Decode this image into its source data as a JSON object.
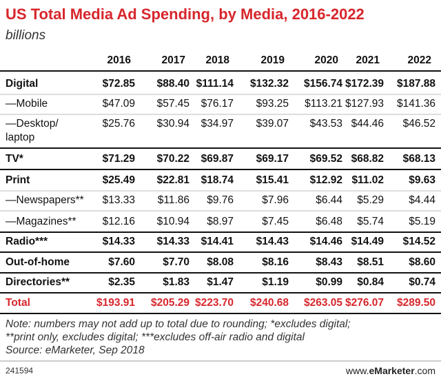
{
  "header": {
    "title": "US Total Media Ad Spending, by Media, 2016-2022",
    "subtitle": "billions"
  },
  "table": {
    "columns": [
      "2016",
      "2017",
      "2018",
      "2019",
      "2020",
      "2021",
      "2022"
    ],
    "rows": [
      {
        "label": "Digital",
        "cells": [
          "$72.85",
          "$88.40",
          "$111.14",
          "$132.32",
          "$156.74",
          "$172.39",
          "$187.88"
        ]
      },
      {
        "label": "—Mobile",
        "cells": [
          "$47.09",
          "$57.45",
          "$76.17",
          "$93.25",
          "$113.21",
          "$127.93",
          "$141.36"
        ]
      },
      {
        "label": [
          "—Desktop/",
          "laptop"
        ],
        "cells": [
          "$25.76",
          "$30.94",
          "$34.97",
          "$39.07",
          "$43.53",
          "$44.46",
          "$46.52"
        ]
      },
      {
        "label": "TV*",
        "cells": [
          "$71.29",
          "$70.22",
          "$69.87",
          "$69.17",
          "$69.52",
          "$68.82",
          "$68.13"
        ]
      },
      {
        "label": "Print",
        "cells": [
          "$25.49",
          "$22.81",
          "$18.74",
          "$15.41",
          "$12.92",
          "$11.02",
          "$9.63"
        ]
      },
      {
        "label": "—Newspapers**",
        "cells": [
          "$13.33",
          "$11.86",
          "$9.76",
          "$7.96",
          "$6.44",
          "$5.29",
          "$4.44"
        ]
      },
      {
        "label": "—Magazines**",
        "cells": [
          "$12.16",
          "$10.94",
          "$8.97",
          "$7.45",
          "$6.48",
          "$5.74",
          "$5.19"
        ]
      },
      {
        "label": "Radio***",
        "cells": [
          "$14.33",
          "$14.33",
          "$14.41",
          "$14.43",
          "$14.46",
          "$14.49",
          "$14.52"
        ]
      },
      {
        "label": "Out-of-home",
        "cells": [
          "$7.60",
          "$7.70",
          "$8.08",
          "$8.16",
          "$8.43",
          "$8.51",
          "$8.60"
        ]
      },
      {
        "label": "Directories**",
        "cells": [
          "$2.35",
          "$1.83",
          "$1.47",
          "$1.19",
          "$0.99",
          "$0.84",
          "$0.74"
        ]
      },
      {
        "label": "Total",
        "cells": [
          "$193.91",
          "$205.29",
          "$223.70",
          "$240.68",
          "$263.05",
          "$276.07",
          "$289.50"
        ]
      }
    ]
  },
  "notes": [
    "Note: numbers may not add up to total due to rounding; *excludes digital;",
    "**print only, excludes digital; ***excludes off-air radio and digital",
    "Source: eMarketer, Sep 2018"
  ],
  "footer": {
    "id": "241594",
    "brand": [
      "www.",
      "eMarketer",
      ".com"
    ]
  }
}
